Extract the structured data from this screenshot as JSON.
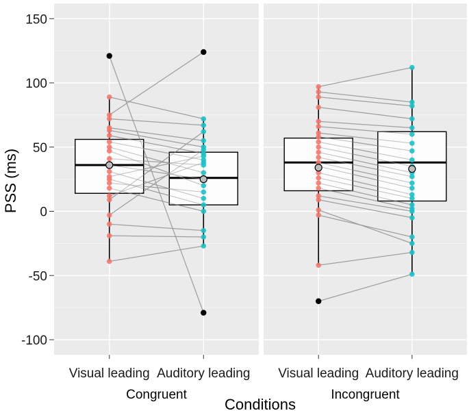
{
  "chart_data": {
    "type": "boxplot",
    "ylabel": "PSS (ms)",
    "xlabel": "Conditions",
    "ylim": [
      -108,
      160
    ],
    "yticks": [
      150,
      100,
      50,
      0,
      -50,
      -100
    ],
    "tick_labels": [
      "150",
      "100",
      "50",
      "0",
      "-50",
      "-100"
    ],
    "panels": [
      {
        "name": "Congruent",
        "categories": [
          "Visual leading",
          "Auditory leading"
        ],
        "boxes": [
          {
            "q1": 14,
            "median": 36,
            "q3": 56,
            "whisker_low": -39,
            "whisker_high": 89,
            "mean": 36,
            "outliers": [
              121
            ]
          },
          {
            "q1": 5,
            "median": 26,
            "q3": 46,
            "whisker_low": -27,
            "whisker_high": 72,
            "mean": 25,
            "outliers": [
              124,
              -79
            ]
          }
        ],
        "points": [
          [
            121,
            -79
          ],
          [
            89,
            72
          ],
          [
            75,
            124
          ],
          [
            72,
            67
          ],
          [
            65,
            55
          ],
          [
            63,
            50
          ],
          [
            59,
            45
          ],
          [
            54,
            40
          ],
          [
            50,
            30
          ],
          [
            47,
            20
          ],
          [
            41,
            36
          ],
          [
            36,
            25
          ],
          [
            31,
            10
          ],
          [
            27,
            43
          ],
          [
            25,
            5
          ],
          [
            22,
            15
          ],
          [
            18,
            0
          ],
          [
            12,
            38
          ],
          [
            9,
            62
          ],
          [
            -3,
            48
          ],
          [
            -10,
            -15
          ],
          [
            -19,
            -20
          ],
          [
            -39,
            -27
          ]
        ]
      },
      {
        "name": "Incongruent",
        "categories": [
          "Visual leading",
          "Auditory leading"
        ],
        "boxes": [
          {
            "q1": 16,
            "median": 38,
            "q3": 57,
            "whisker_low": -42,
            "whisker_high": 97,
            "mean": 34,
            "outliers": [
              -70
            ]
          },
          {
            "q1": 8,
            "median": 38,
            "q3": 62,
            "whisker_low": -49,
            "whisker_high": 112,
            "mean": 33,
            "outliers": []
          }
        ],
        "points": [
          [
            97,
            112
          ],
          [
            93,
            85
          ],
          [
            89,
            82
          ],
          [
            81,
            72
          ],
          [
            70,
            65
          ],
          [
            66,
            60
          ],
          [
            61,
            53
          ],
          [
            58,
            47
          ],
          [
            54,
            40
          ],
          [
            50,
            35
          ],
          [
            46,
            30
          ],
          [
            42,
            27
          ],
          [
            38,
            22
          ],
          [
            35,
            18
          ],
          [
            30,
            13
          ],
          [
            26,
            10
          ],
          [
            22,
            5
          ],
          [
            18,
            2
          ],
          [
            12,
            0
          ],
          [
            9,
            -5
          ],
          [
            1,
            -25
          ],
          [
            -3,
            -20
          ],
          [
            -42,
            -32
          ],
          [
            -70,
            -49
          ]
        ]
      }
    ],
    "colors": {
      "visual": "#F07A70",
      "auditory": "#1FBFC4",
      "panel_bg": "#EBEBEB",
      "grid": "#FFFFFF",
      "line": "#9A9A9A"
    }
  }
}
